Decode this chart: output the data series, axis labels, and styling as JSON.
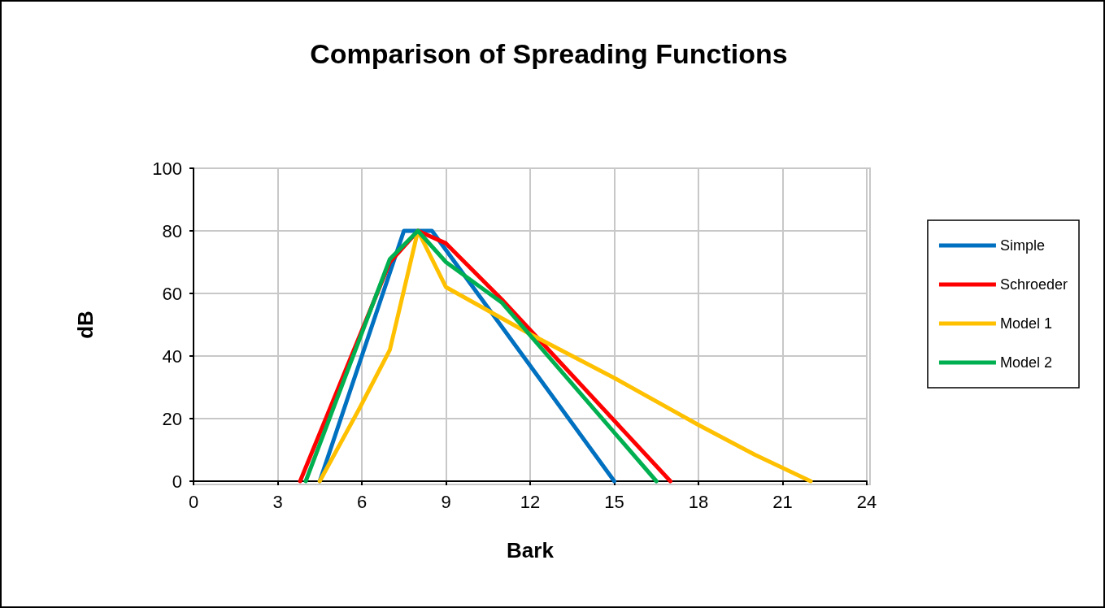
{
  "chart_data": {
    "type": "line",
    "title": "Comparison of Spreading Functions",
    "xlabel": "Bark",
    "ylabel": "dB",
    "xlim": [
      0,
      24
    ],
    "xticks": [
      0,
      3,
      6,
      9,
      12,
      15,
      18,
      21,
      24
    ],
    "ylim": [
      0,
      100
    ],
    "yticks": [
      0,
      20,
      40,
      60,
      80,
      100
    ],
    "grid": true,
    "legend": "right",
    "marker": "none",
    "line_style": "solid",
    "series": [
      {
        "name": "Simple",
        "color": "#0070c0",
        "x": [
          4.5,
          7.5,
          8.5,
          15
        ],
        "values": [
          0,
          80,
          80,
          0
        ]
      },
      {
        "name": "Schroeder",
        "color": "#ff0000",
        "x": [
          3.8,
          7,
          8,
          9,
          11,
          17
        ],
        "values": [
          0,
          70,
          80,
          76,
          58,
          0
        ]
      },
      {
        "name": "Model 1",
        "color": "#ffc000",
        "x": [
          4.5,
          5.9,
          7,
          8,
          9,
          12,
          15,
          18,
          20,
          22
        ],
        "values": [
          0,
          23,
          42,
          80,
          62,
          47,
          33,
          18,
          8.5,
          0
        ]
      },
      {
        "name": "Model 2",
        "color": "#00b050",
        "x": [
          4,
          7,
          8,
          9,
          11,
          16.5
        ],
        "values": [
          0,
          71,
          80,
          70,
          57,
          0
        ]
      }
    ]
  }
}
